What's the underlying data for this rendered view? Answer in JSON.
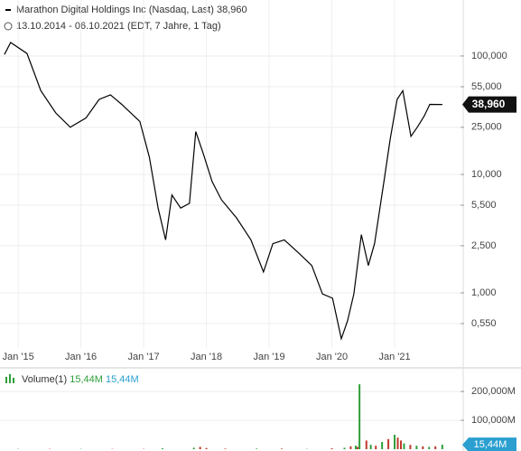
{
  "chart_data": [
    {
      "type": "line",
      "title": "Marathon Digital Holdings Inc (Nasdaq, Last)",
      "subtitle": "13.10.2014 - 06.10.2021",
      "note": "(EDT, 7 Jahre, 1 Tag)",
      "log_scale": true,
      "grid": true,
      "last": {
        "value": 38.96,
        "label": "38,960"
      },
      "xlim": [
        2014.71,
        2022.05
      ],
      "xticks": [
        {
          "value": 2015,
          "label": "Jan '15"
        },
        {
          "value": 2016,
          "label": "Jan '16"
        },
        {
          "value": 2017,
          "label": "Jan '17"
        },
        {
          "value": 2018,
          "label": "Jan '18"
        },
        {
          "value": 2019,
          "label": "Jan '19"
        },
        {
          "value": 2020,
          "label": "Jan '20"
        },
        {
          "value": 2021,
          "label": "Jan '21"
        }
      ],
      "ylim": [
        0.241,
        297
      ],
      "yticks": [
        {
          "value": 100,
          "label": "100,000"
        },
        {
          "value": 55,
          "label": "55,000"
        },
        {
          "value": 25,
          "label": "25,000"
        },
        {
          "value": 10,
          "label": "10,000"
        },
        {
          "value": 5.5,
          "label": "5,500"
        },
        {
          "value": 2.5,
          "label": "2,500"
        },
        {
          "value": 1,
          "label": "1,000"
        },
        {
          "value": 0.55,
          "label": "0,550"
        }
      ],
      "series": [
        {
          "color": "#000000",
          "x": [
            2014.78,
            2014.88,
            2015.14,
            2015.36,
            2015.6,
            2015.83,
            2016.08,
            2016.29,
            2016.47,
            2016.65,
            2016.94,
            2017.09,
            2017.23,
            2017.35,
            2017.45,
            2017.59,
            2017.73,
            2017.83,
            2017.95,
            2018.09,
            2018.24,
            2018.48,
            2018.71,
            2018.91,
            2019.06,
            2019.24,
            2019.46,
            2019.68,
            2019.85,
            2020.01,
            2020.15,
            2020.25,
            2020.35,
            2020.47,
            2020.58,
            2020.68,
            2020.83,
            2020.93,
            2021.04,
            2021.13,
            2021.26,
            2021.36,
            2021.47,
            2021.56,
            2021.76
          ],
          "values": [
            103,
            130,
            105,
            51,
            33,
            25,
            30,
            43,
            47,
            39,
            28,
            14,
            5.2,
            2.8,
            6.7,
            5.2,
            5.7,
            23,
            15,
            8.7,
            6.1,
            4.3,
            2.8,
            1.5,
            2.6,
            2.8,
            2.2,
            1.7,
            0.98,
            0.9,
            0.41,
            0.58,
            0.98,
            3.1,
            1.7,
            2.6,
            8.7,
            20,
            43,
            51,
            21,
            25,
            31,
            39,
            38.96
          ]
        }
      ]
    },
    {
      "type": "bar",
      "title": "Volume(1)",
      "header_values": [
        "15,44M",
        "15,44M"
      ],
      "last": {
        "value": 15.44,
        "label": "15,44M"
      },
      "xlim": [
        2014.71,
        2022.05
      ],
      "ylim": [
        0,
        285
      ],
      "yticks": [
        {
          "value": 200,
          "label": "200,000M"
        },
        {
          "value": 100,
          "label": "100,000M"
        }
      ],
      "x": [
        2015.0,
        2015.5,
        2016.0,
        2016.5,
        2017.0,
        2017.3,
        2017.8,
        2017.9,
        2018.0,
        2018.3,
        2018.8,
        2019.2,
        2019.6,
        2020.0,
        2020.2,
        2020.3,
        2020.38,
        2020.41,
        2020.44,
        2020.55,
        2020.62,
        2020.7,
        2020.8,
        2020.9,
        2021.0,
        2021.05,
        2021.1,
        2021.15,
        2021.25,
        2021.35,
        2021.45,
        2021.55,
        2021.65,
        2021.76
      ],
      "values": [
        1,
        1,
        1,
        1,
        1,
        3,
        5,
        8,
        4,
        2,
        2,
        2,
        1,
        3,
        5,
        10,
        12,
        8,
        225,
        30,
        15,
        12,
        25,
        35,
        50,
        40,
        30,
        20,
        15,
        12,
        10,
        8,
        10,
        15.44
      ],
      "colors": [
        "#2e9e3a",
        "#c0392b",
        "#2e9e3a",
        "#c0392b",
        "#c0392b",
        "#2e9e3a",
        "#2e9e3a",
        "#c0392b",
        "#c0392b",
        "#c0392b",
        "#2e9e3a",
        "#c0392b",
        "#2e9e3a",
        "#c0392b",
        "#2e9e3a",
        "#c0392b",
        "#2e9e3a",
        "#c0392b",
        "#2e9e3a",
        "#c0392b",
        "#2e9e3a",
        "#c0392b",
        "#2e9e3a",
        "#c0392b",
        "#2e9e3a",
        "#c0392b",
        "#c0392b",
        "#2e9e3a",
        "#c0392b",
        "#2e9e3a",
        "#c0392b",
        "#2e9e3a",
        "#c0392b",
        "#2e9e3a"
      ]
    }
  ]
}
